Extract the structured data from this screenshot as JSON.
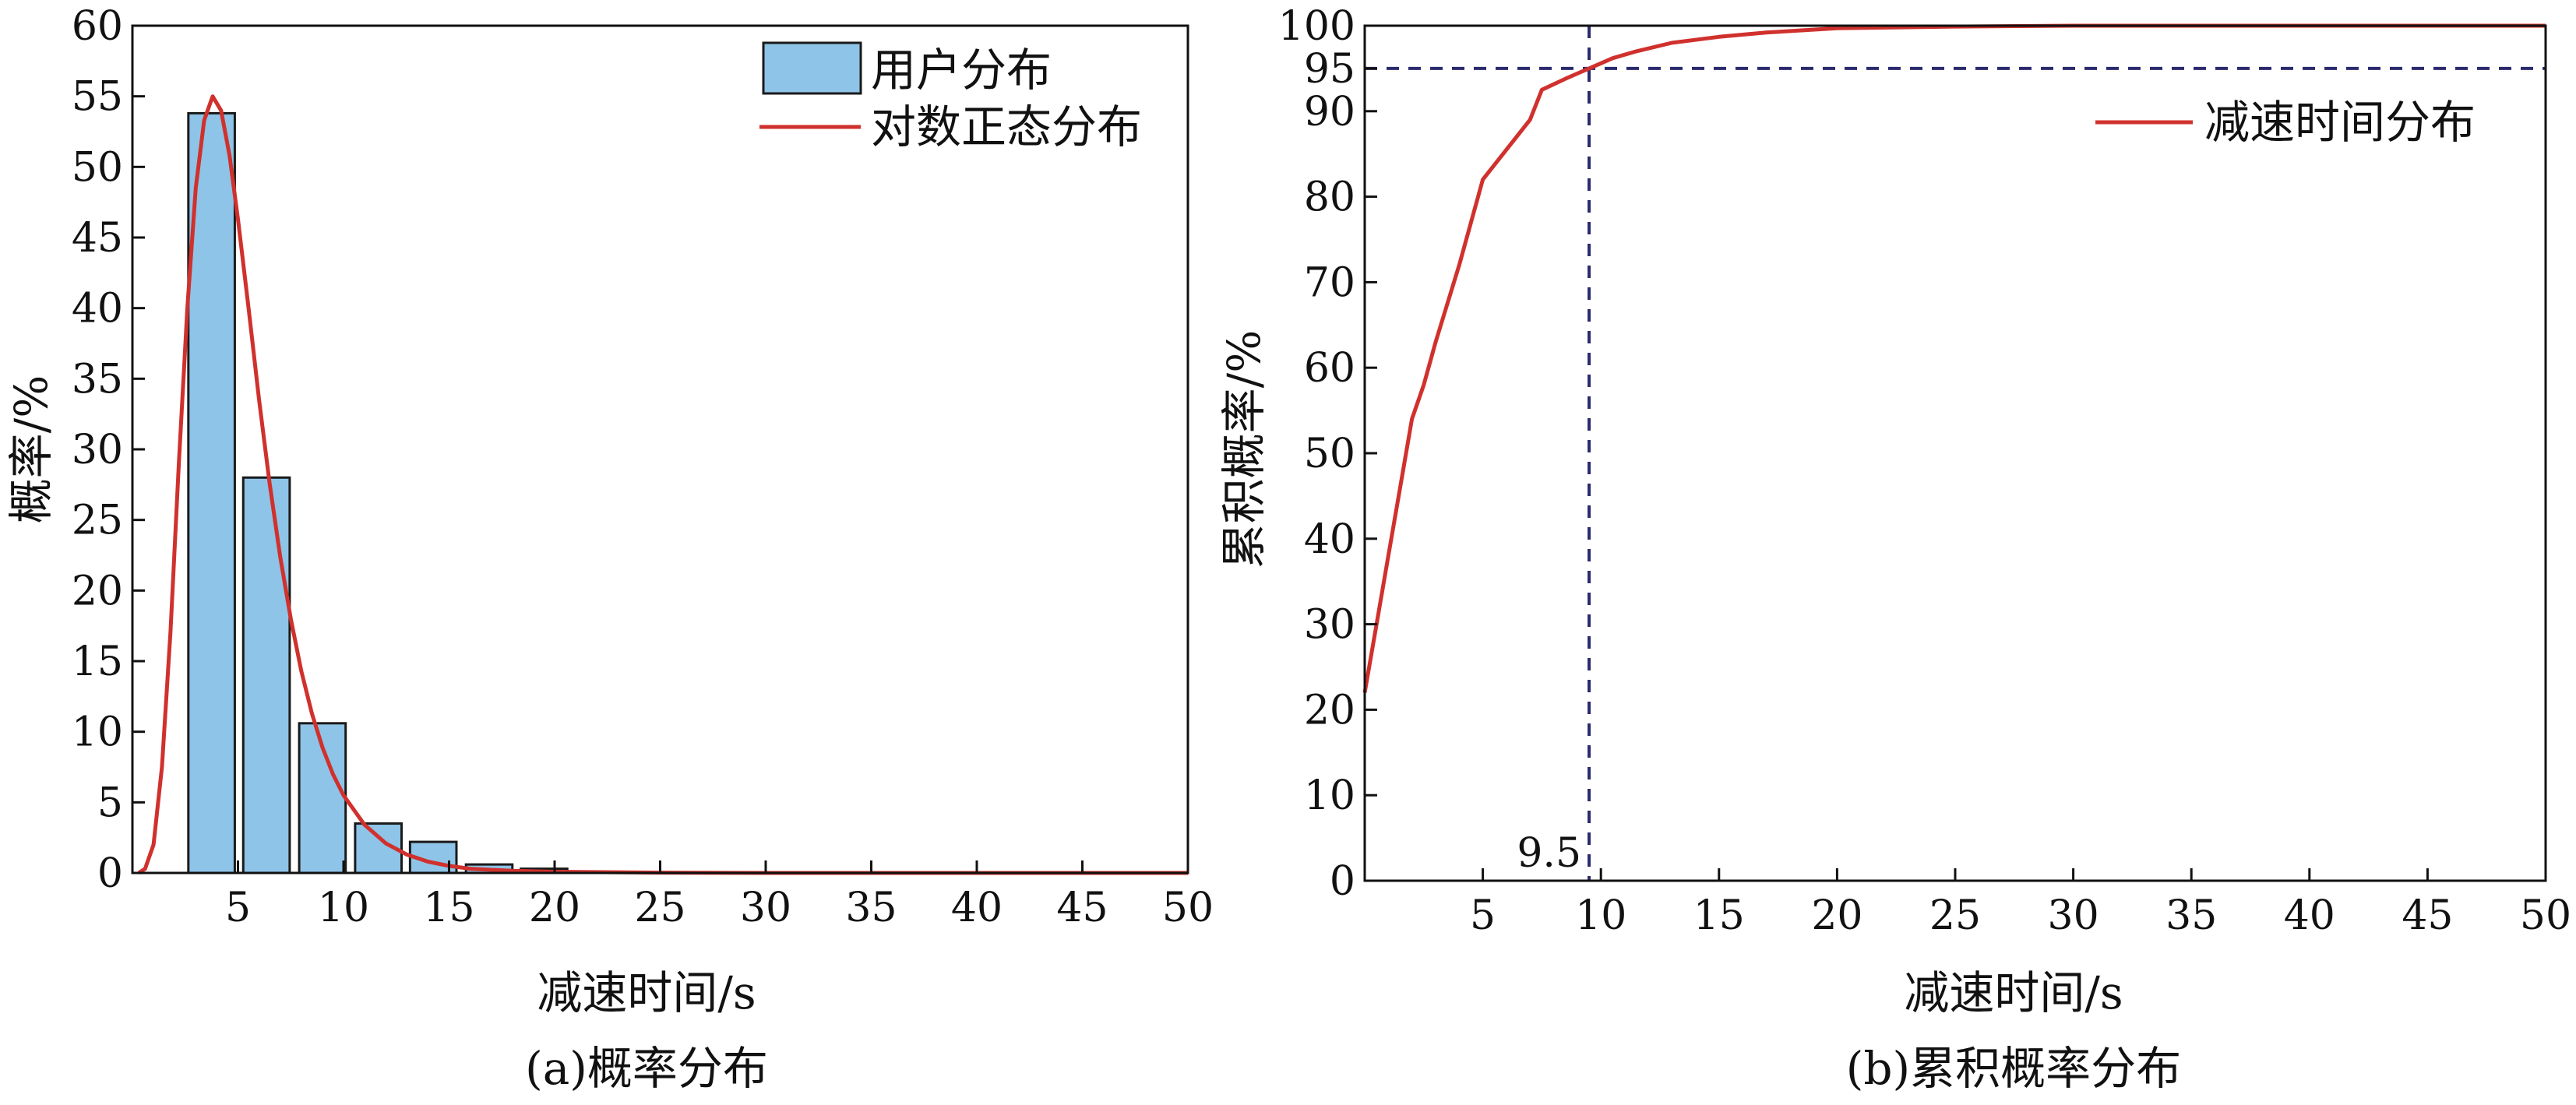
{
  "colors": {
    "bar_fill": "#8ec4e8",
    "bar_stroke": "#1a1a1a",
    "curve": "#d0312d",
    "ref_line": "#2a2a6e"
  },
  "chart_data": [
    {
      "id": "a",
      "type": "bar",
      "caption": "(a)概率分布",
      "xlabel": "减速时间/s",
      "ylabel": "概率/%",
      "xlim": [
        0,
        50
      ],
      "ylim": [
        0,
        60
      ],
      "xticks": [
        5,
        10,
        15,
        20,
        25,
        30,
        35,
        40,
        45,
        50
      ],
      "yticks": [
        0,
        5,
        10,
        15,
        20,
        25,
        30,
        35,
        40,
        45,
        50,
        55,
        60
      ],
      "legend_position": "top-right",
      "series": [
        {
          "name": "用户分布",
          "type": "bar",
          "bar_width": 2.2,
          "x": [
            3.75,
            6.35,
            9.0,
            11.65,
            14.25,
            16.9,
            19.5
          ],
          "values": [
            53.8,
            28.0,
            10.6,
            3.5,
            2.2,
            0.6,
            0.3
          ]
        },
        {
          "name": "对数正态分布",
          "type": "line",
          "x": [
            0.3,
            0.6,
            1.0,
            1.4,
            1.8,
            2.2,
            2.6,
            3.0,
            3.4,
            3.8,
            4.2,
            4.6,
            5.0,
            5.5,
            6.0,
            6.5,
            7.0,
            7.5,
            8.0,
            8.5,
            9.0,
            9.5,
            10.0,
            11.0,
            12.0,
            13.0,
            14.0,
            15.0,
            16.0,
            18.0,
            20.0,
            25.0,
            30.0,
            40.0,
            50.0
          ],
          "values": [
            0.0,
            0.3,
            2.0,
            7.5,
            17.0,
            29.0,
            40.0,
            48.5,
            53.3,
            55.0,
            54.0,
            50.8,
            46.3,
            40.0,
            33.5,
            27.6,
            22.4,
            18.0,
            14.3,
            11.3,
            8.9,
            7.0,
            5.5,
            3.4,
            2.1,
            1.3,
            0.8,
            0.5,
            0.3,
            0.15,
            0.08,
            0.02,
            0.0,
            0.0,
            0.0
          ]
        }
      ]
    },
    {
      "id": "b",
      "type": "line",
      "caption": "(b)累积概率分布",
      "xlabel": "减速时间/s",
      "ylabel": "累积概率/%",
      "xlim": [
        0,
        50
      ],
      "ylim": [
        0,
        100
      ],
      "xticks": [
        5,
        10,
        15,
        20,
        25,
        30,
        35,
        40,
        45,
        50
      ],
      "yticks": [
        0,
        10,
        20,
        30,
        40,
        50,
        60,
        70,
        80,
        90,
        95,
        100
      ],
      "legend_position": "top-right",
      "reference": {
        "x": 9.5,
        "y": 95,
        "x_label": "9.5"
      },
      "series": [
        {
          "name": "减速时间分布",
          "x": [
            0,
            0.5,
            1.0,
            1.5,
            2.0,
            2.5,
            3.0,
            4.0,
            5.0,
            6.0,
            7.0,
            7.5,
            8.5,
            9.5,
            10.5,
            11.5,
            13.0,
            15.0,
            17.0,
            20.0,
            25.0,
            30.0,
            40.0,
            50.0
          ],
          "values": [
            22,
            30,
            38,
            46,
            54,
            58,
            63,
            72,
            82,
            85.5,
            89,
            92.5,
            93.8,
            95,
            96.2,
            97,
            98,
            98.7,
            99.2,
            99.7,
            99.9,
            100,
            100,
            100
          ]
        }
      ]
    }
  ]
}
